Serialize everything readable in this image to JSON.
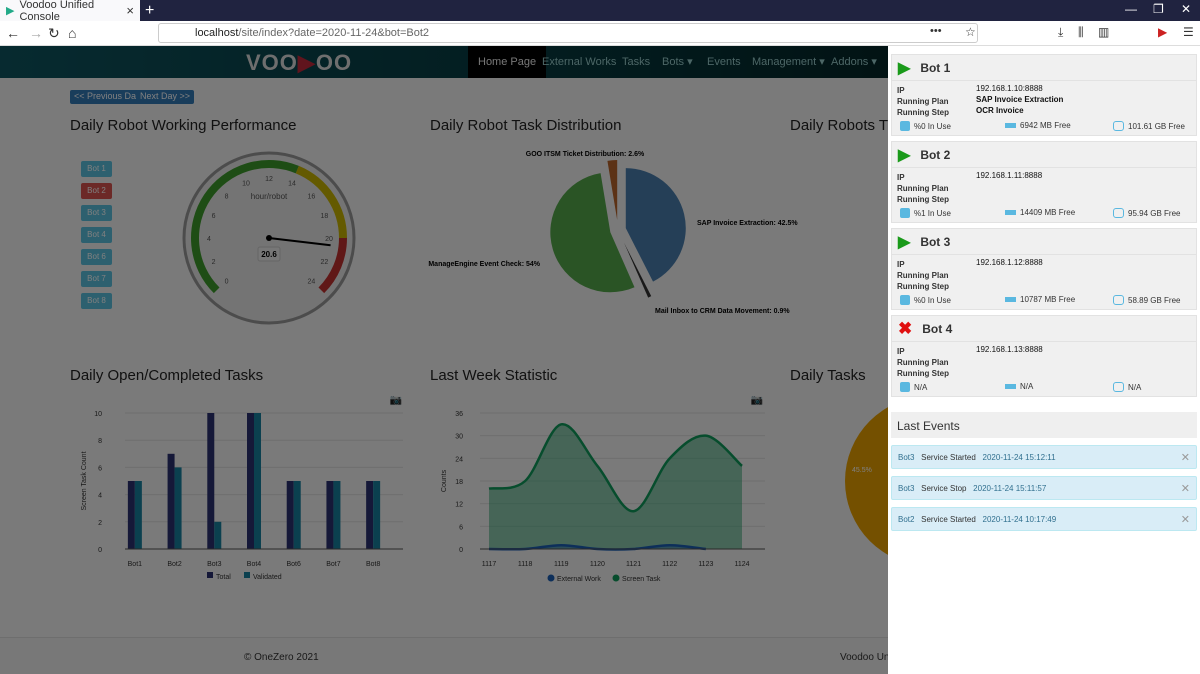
{
  "browser": {
    "tab_title": "Voodoo Unified Console",
    "url_host": "localhost",
    "url_path": "/site/index?date=2020-11-24&bot=Bot2"
  },
  "nav": {
    "logo": "VOODOO",
    "items": [
      "Home Page",
      "External Works",
      "Tasks",
      "Bots ▾",
      "Events",
      "Management ▾",
      "Addons ▾"
    ],
    "active": "Home Page"
  },
  "buttons": {
    "prev": "<< Previous Day",
    "next": "Next Day >>"
  },
  "sections": {
    "perf": "Daily Robot Working Performance",
    "dist": "Daily Robot Task Distribution",
    "robots_t": "Daily Robots T",
    "open": "Daily Open/Completed Tasks",
    "week": "Last Week Statistic",
    "daily_tasks": "Daily Tasks"
  },
  "bot_buttons": [
    "Bot 1",
    "Bot 2",
    "Bot 3",
    "Bot 4",
    "Bot 6",
    "Bot 7",
    "Bot 8"
  ],
  "selected_bot": "Bot 2",
  "footer": {
    "copyright": "© OneZero 2021",
    "right": "Voodoo Unif"
  },
  "chart_data": [
    {
      "type": "gauge",
      "label": "hour/robot",
      "value": 20.6,
      "value_label": "20.6",
      "range": [
        0,
        24
      ],
      "ticks": [
        "0",
        "2",
        "4",
        "6",
        "8",
        "10",
        "12",
        "14",
        "16",
        "18",
        "20",
        "22",
        "24"
      ],
      "bands": [
        {
          "from": 0,
          "to": 14,
          "color": "#3c9a2b"
        },
        {
          "from": 14,
          "to": 20,
          "color": "#c8b400"
        },
        {
          "from": 20,
          "to": 24,
          "color": "#c0302e"
        }
      ]
    },
    {
      "type": "pie",
      "slices": [
        {
          "label": "SAP Invoice Extraction: 42.5%",
          "value": 42.5,
          "color": "#4a7faf"
        },
        {
          "label": "Mail Inbox to CRM Data Movement: 0.9%",
          "value": 0.9,
          "color": "#333333"
        },
        {
          "label": "ManageEngine Event Check: 54%",
          "value": 54,
          "color": "#55a84b"
        },
        {
          "label": "GOO ITSM Ticket Distribution: 2.6%",
          "value": 2.6,
          "color": "#b8642a"
        }
      ]
    },
    {
      "type": "bar",
      "categories": [
        "Bot1",
        "Bot2",
        "Bot3",
        "Bot4",
        "Bot6",
        "Bot7",
        "Bot8"
      ],
      "ylabel": "Screen Task Count",
      "ylim": [
        0,
        10
      ],
      "yticks": [
        "0",
        "2",
        "4",
        "6",
        "8",
        "10"
      ],
      "series": [
        {
          "name": "Total",
          "values": [
            5,
            7,
            10,
            10,
            5,
            5,
            5
          ],
          "color": "#2a3070"
        },
        {
          "name": "Validated",
          "values": [
            5,
            6,
            2,
            10,
            5,
            5,
            5
          ],
          "color": "#17809e"
        }
      ]
    },
    {
      "type": "area",
      "categories": [
        "1117",
        "1118",
        "1119",
        "1120",
        "1121",
        "1122",
        "1123",
        "1124"
      ],
      "ylabel": "Counts",
      "ylim": [
        0,
        36
      ],
      "yticks": [
        "0",
        "6",
        "12",
        "18",
        "24",
        "30",
        "36"
      ],
      "series": [
        {
          "name": "External Work",
          "values": [
            0,
            0,
            1,
            0,
            0,
            1,
            0,
            null
          ],
          "color": "#1a5fb4"
        },
        {
          "name": "Screen Task",
          "values": [
            16,
            18,
            33,
            22,
            10,
            24,
            30,
            22
          ],
          "color": "#0e9a5a"
        }
      ]
    },
    {
      "type": "pie",
      "partial": true,
      "slices": [
        {
          "label": "45.5%",
          "value": 45.5,
          "color": "#e8a000"
        }
      ]
    }
  ],
  "bots": [
    {
      "name": "Bot 1",
      "status": "running",
      "ip": "192.168.1.10:8888",
      "plan": "SAP Invoice Extraction",
      "step": "OCR Invoice",
      "cpu": "%0 In Use",
      "ram": "6942 MB Free",
      "disk": "101.61 GB Free"
    },
    {
      "name": "Bot 2",
      "status": "running",
      "ip": "192.168.1.11:8888",
      "plan": "",
      "step": "",
      "cpu": "%1 In Use",
      "ram": "14409 MB Free",
      "disk": "95.94 GB Free"
    },
    {
      "name": "Bot 3",
      "status": "running",
      "ip": "192.168.1.12:8888",
      "plan": "",
      "step": "",
      "cpu": "%0 In Use",
      "ram": "10787 MB Free",
      "disk": "58.89 GB Free"
    },
    {
      "name": "Bot 4",
      "status": "stopped",
      "ip": "192.168.1.13:8888",
      "plan": "",
      "step": "",
      "cpu": "N/A",
      "ram": "N/A",
      "disk": "N/A"
    }
  ],
  "labels": {
    "ip": "IP",
    "plan": "Running Plan",
    "step": "Running Step"
  },
  "events": {
    "title": "Last Events",
    "items": [
      {
        "bot": "Bot3",
        "msg": "Service Started",
        "time": "2020-11-24 15:12:11"
      },
      {
        "bot": "Bot3",
        "msg": "Service Stop",
        "time": "2020-11-24 15:11:57"
      },
      {
        "bot": "Bot2",
        "msg": "Service Started",
        "time": "2020-11-24 10:17:49"
      }
    ]
  }
}
